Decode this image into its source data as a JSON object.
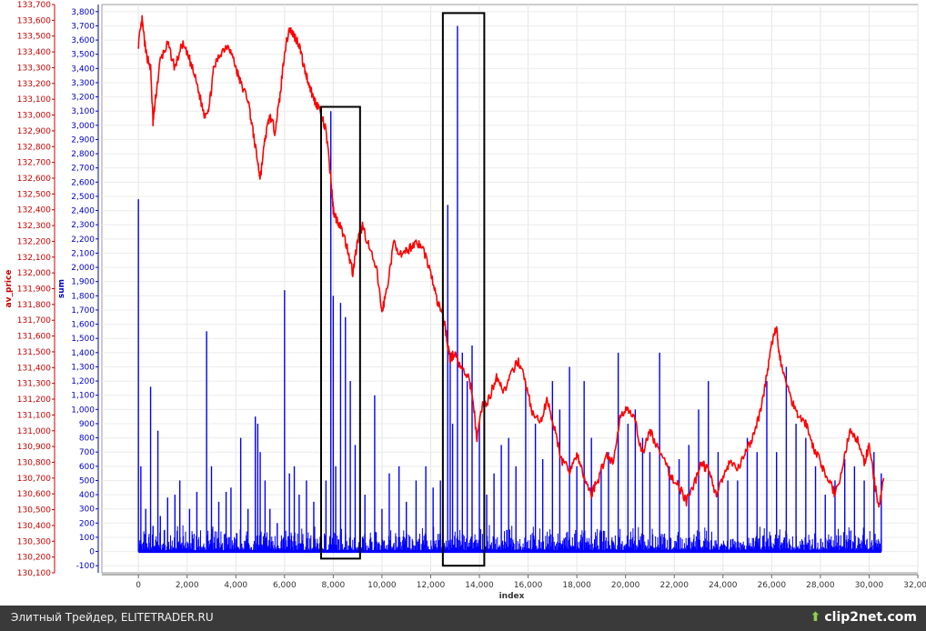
{
  "chart_data": {
    "type": "line",
    "title": "",
    "xlabel": "index",
    "x_range": [
      -1500,
      32000
    ],
    "x_ticks": [
      0,
      2000,
      4000,
      6000,
      8000,
      10000,
      12000,
      14000,
      16000,
      18000,
      20000,
      22000,
      24000,
      26000,
      28000,
      30000,
      32000
    ],
    "x_tick_labels": [
      "0",
      "2,000",
      "4,000",
      "6,000",
      "8,000",
      "10,000",
      "12,000",
      "14,000",
      "16,000",
      "18,000",
      "20,000",
      "22,000",
      "24,000",
      "26,000",
      "28,000",
      "30,000",
      "32,000"
    ],
    "grid": true,
    "axes": [
      {
        "id": "av_price",
        "label": "av_price",
        "side": "left",
        "color": "#cc0000",
        "range": [
          130100,
          133700
        ],
        "ticks": [
          130100,
          130200,
          130300,
          130400,
          130500,
          130600,
          130700,
          130800,
          130900,
          131000,
          131100,
          131200,
          131300,
          131400,
          131500,
          131600,
          131700,
          131800,
          131900,
          132000,
          132100,
          132200,
          132300,
          132400,
          132500,
          132600,
          132700,
          132800,
          132900,
          133000,
          133100,
          133200,
          133300,
          133400,
          133500,
          133600,
          133700
        ],
        "tick_labels": [
          "130,100",
          "130,200",
          "130,300",
          "130,400",
          "130,500",
          "130,600",
          "130,700",
          "130,800",
          "130,900",
          "131,000",
          "131,100",
          "131,200",
          "131,300",
          "131,400",
          "131,500",
          "131,600",
          "131,700",
          "131,800",
          "131,900",
          "132,000",
          "132,100",
          "132,200",
          "132,300",
          "132,400",
          "132,500",
          "132,600",
          "132,700",
          "132,800",
          "132,900",
          "133,000",
          "133,100",
          "133,200",
          "133,300",
          "133,400",
          "133,500",
          "133,600",
          "133,700"
        ]
      },
      {
        "id": "sum",
        "label": "sum",
        "side": "left",
        "color": "#0000cc",
        "range": [
          -150,
          3850
        ],
        "ticks": [
          -100,
          0,
          100,
          200,
          300,
          400,
          500,
          600,
          700,
          800,
          900,
          1000,
          1100,
          1200,
          1300,
          1400,
          1500,
          1600,
          1700,
          1800,
          1900,
          2000,
          2100,
          2200,
          2300,
          2400,
          2500,
          2600,
          2700,
          2800,
          2900,
          3000,
          3100,
          3200,
          3300,
          3400,
          3500,
          3600,
          3700,
          3800
        ],
        "tick_labels": [
          "-100",
          "0",
          "100",
          "200",
          "300",
          "400",
          "500",
          "600",
          "700",
          "800",
          "900",
          "1,000",
          "1,100",
          "1,200",
          "1,300",
          "1,400",
          "1,500",
          "1,600",
          "1,700",
          "1,800",
          "1,900",
          "2,000",
          "2,100",
          "2,200",
          "2,300",
          "2,400",
          "2,500",
          "2,600",
          "2,700",
          "2,800",
          "2,900",
          "3,000",
          "3,100",
          "3,200",
          "3,300",
          "3,400",
          "3,500",
          "3,600",
          "3,700",
          "3,800"
        ]
      }
    ],
    "series": [
      {
        "name": "av_price",
        "axis": "av_price",
        "color": "#ff0000",
        "x": [
          0,
          150,
          300,
          500,
          600,
          700,
          900,
          1200,
          1500,
          1800,
          2100,
          2400,
          2700,
          2900,
          3100,
          3400,
          3700,
          4000,
          4200,
          4500,
          4700,
          4900,
          5000,
          5200,
          5400,
          5600,
          5800,
          6000,
          6200,
          6400,
          6600,
          6800,
          7000,
          7200,
          7400,
          7700,
          7900,
          8000,
          8100,
          8300,
          8600,
          8800,
          9000,
          9200,
          9500,
          9800,
          10000,
          10200,
          10500,
          10800,
          11100,
          11400,
          11700,
          12000,
          12300,
          12500,
          12700,
          12800,
          13000,
          13200,
          13500,
          13700,
          13900,
          14100,
          14400,
          14700,
          15000,
          15300,
          15600,
          15900,
          16200,
          16500,
          16800,
          17100,
          17400,
          17700,
          18000,
          18300,
          18600,
          18900,
          19200,
          19500,
          19800,
          20100,
          20400,
          20700,
          21000,
          21300,
          21600,
          21900,
          22200,
          22500,
          22800,
          23100,
          23400,
          23700,
          24000,
          24300,
          24600,
          24900,
          25200,
          25500,
          25800,
          26000,
          26200,
          26300,
          26500,
          26800,
          27100,
          27400,
          27700,
          28000,
          28300,
          28600,
          28900,
          29200,
          29500,
          29800,
          30000,
          30200,
          30400,
          30600
        ],
        "y": [
          133450,
          133600,
          133400,
          133300,
          132950,
          133100,
          133350,
          133450,
          133300,
          133450,
          133350,
          133200,
          133000,
          133050,
          133300,
          133400,
          133450,
          133300,
          133200,
          133100,
          132900,
          132700,
          132600,
          132850,
          133000,
          132900,
          133100,
          133400,
          133550,
          133500,
          133450,
          133300,
          133200,
          133100,
          133050,
          132900,
          132600,
          132400,
          132350,
          132300,
          132150,
          132000,
          132200,
          132300,
          132150,
          132000,
          131750,
          131900,
          132200,
          132100,
          132150,
          132200,
          132150,
          132000,
          131800,
          131750,
          131550,
          131450,
          131500,
          131400,
          131350,
          131250,
          130950,
          131150,
          131200,
          131350,
          131250,
          131350,
          131450,
          131300,
          131100,
          131050,
          131200,
          131000,
          130800,
          130750,
          130850,
          130700,
          130600,
          130700,
          130850,
          130800,
          131100,
          131150,
          131050,
          130850,
          131000,
          130900,
          130800,
          130700,
          130650,
          130550,
          130650,
          130800,
          130750,
          130600,
          130700,
          130800,
          130750,
          130850,
          130950,
          131100,
          131350,
          131550,
          131650,
          131500,
          131350,
          131200,
          131100,
          131050,
          130900,
          130800,
          130700,
          130600,
          130750,
          131000,
          130950,
          130800,
          130900,
          130700,
          130500,
          130700
        ]
      },
      {
        "name": "sum",
        "axis": "sum",
        "color": "#0000ff",
        "type": "spikes",
        "x": [
          0,
          100,
          300,
          500,
          600,
          800,
          900,
          1200,
          1500,
          1700,
          2100,
          2400,
          2800,
          3000,
          3300,
          3600,
          3800,
          4200,
          4500,
          4800,
          4900,
          5000,
          5200,
          5400,
          5700,
          6000,
          6200,
          6400,
          6600,
          6900,
          7200,
          7500,
          7700,
          7900,
          8000,
          8100,
          8300,
          8500,
          8700,
          8900,
          9300,
          9700,
          10000,
          10300,
          10700,
          11000,
          11400,
          11800,
          12100,
          12400,
          12700,
          12800,
          12900,
          13100,
          13300,
          13500,
          13700,
          14000,
          14300,
          14600,
          14900,
          15200,
          15500,
          15900,
          16300,
          16600,
          17000,
          17300,
          17700,
          18000,
          18300,
          18600,
          19000,
          19300,
          19700,
          20100,
          20400,
          20700,
          21000,
          21400,
          21800,
          22200,
          22600,
          23000,
          23400,
          23800,
          24200,
          24600,
          25000,
          25400,
          25800,
          26200,
          26600,
          27000,
          27400,
          27800,
          28200,
          28600,
          29000,
          29400,
          29800,
          30200,
          30500
        ],
        "y": [
          2480,
          600,
          300,
          1160,
          180,
          850,
          250,
          380,
          400,
          500,
          300,
          420,
          1550,
          600,
          350,
          420,
          450,
          800,
          300,
          950,
          900,
          700,
          500,
          300,
          200,
          1840,
          550,
          600,
          400,
          500,
          350,
          700,
          500,
          3100,
          1800,
          600,
          1750,
          1650,
          1200,
          750,
          400,
          1100,
          300,
          550,
          600,
          350,
          500,
          600,
          450,
          500,
          2440,
          1400,
          900,
          3700,
          1400,
          1200,
          1450,
          900,
          400,
          550,
          750,
          800,
          600,
          1200,
          900,
          650,
          1200,
          1000,
          1300,
          600,
          1200,
          800,
          600,
          700,
          1400,
          900,
          1000,
          800,
          700,
          1400,
          600,
          650,
          750,
          1000,
          1200,
          700,
          500,
          500,
          800,
          700,
          1200,
          700,
          1300,
          900,
          800,
          600,
          400,
          500,
          650,
          600,
          500,
          700,
          550
        ],
        "baseline_noise_max": 180
      }
    ],
    "annotations": [
      {
        "type": "rectangle",
        "x": [
          7500,
          9100
        ],
        "y_sum": [
          -50,
          3130
        ]
      },
      {
        "type": "rectangle",
        "x": [
          12500,
          14200
        ],
        "y_sum": [
          -100,
          3790
        ]
      }
    ]
  },
  "footer": {
    "left_text": "Элитный Трейдер, ELITETRADER.RU",
    "right_text": "clip2net.com"
  }
}
